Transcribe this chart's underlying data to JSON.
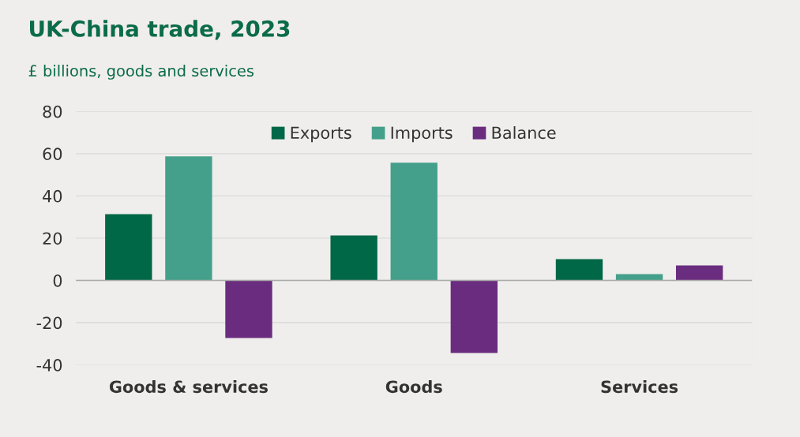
{
  "chart_data": {
    "type": "bar",
    "title": "UK-China trade, 2023",
    "subtitle": "£ billions, goods and services",
    "categories": [
      "Goods & services",
      "Goods",
      "Services"
    ],
    "series": [
      {
        "name": "Exports",
        "color": "#006747",
        "values": [
          31.4,
          21.3,
          10.1
        ]
      },
      {
        "name": "Imports",
        "color": "#44a08a",
        "values": [
          58.7,
          55.7,
          3.0
        ]
      },
      {
        "name": "Balance",
        "color": "#6a2c7e",
        "values": [
          -27.3,
          -34.4,
          7.1
        ]
      }
    ],
    "ylim": [
      -40,
      80
    ],
    "yticks": [
      -40,
      -20,
      0,
      20,
      40,
      60,
      80
    ],
    "grid": "y",
    "legend": "top"
  }
}
